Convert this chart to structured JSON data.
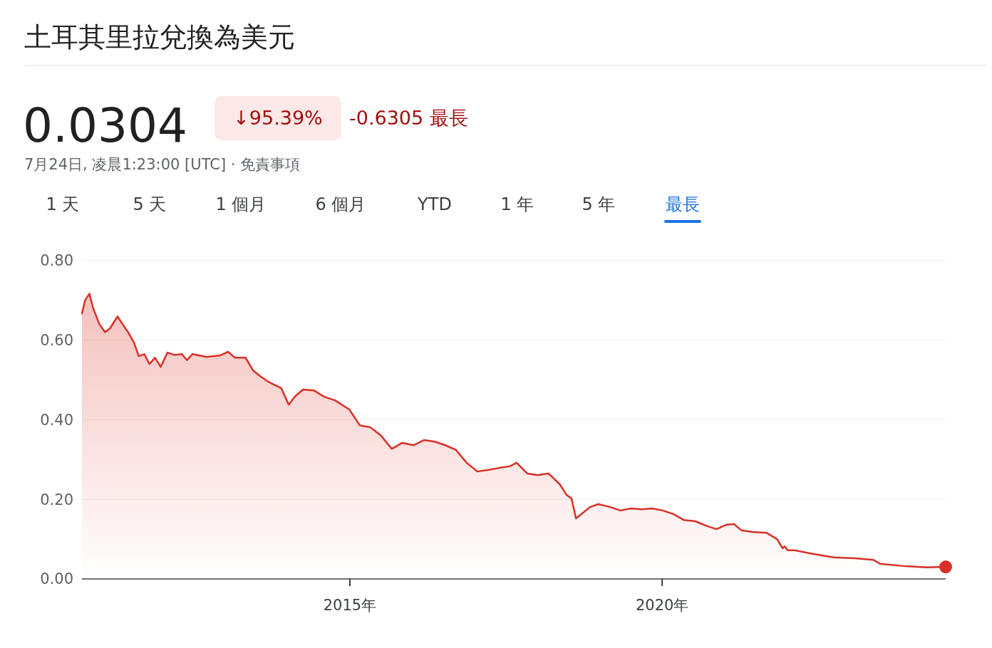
{
  "chart_data": {
    "type": "area",
    "title": "土耳其里拉兌換為美元",
    "annotations": [
      "0.0304",
      "↓95.39%",
      "-0.6305 最長",
      "7月24日, 凌晨1:23:00 [UTC] · 免責事項",
      "1 天",
      "5 天",
      "1 個月",
      "6 個月",
      "YTD",
      "1 年",
      "5 年",
      "最長"
    ],
    "series": [
      {
        "color": "#d93025",
        "x": [
          2010.71,
          2010.76,
          2010.83,
          2010.89,
          2010.99,
          2011.08,
          2011.16,
          2011.28,
          2011.36,
          2011.45,
          2011.54,
          2011.62,
          2011.71,
          2011.79,
          2011.88,
          2011.97,
          2012.08,
          2012.19,
          2012.31,
          2012.39,
          2012.48,
          2012.71,
          2012.93,
          2013.05,
          2013.16,
          2013.33,
          2013.45,
          2013.56,
          2013.68,
          2013.79,
          2013.9,
          2014.02,
          2014.13,
          2014.25,
          2014.42,
          2014.59,
          2014.76,
          2014.99,
          2015.16,
          2015.33,
          2015.5,
          2015.67,
          2015.84,
          2016.02,
          2016.19,
          2016.36,
          2016.53,
          2016.7,
          2016.87,
          2017.04,
          2017.21,
          2017.39,
          2017.56,
          2017.67,
          2017.84,
          2018.01,
          2018.18,
          2018.36,
          2018.47,
          2018.55,
          2018.62,
          2018.73,
          2018.85,
          2018.98,
          2019.16,
          2019.33,
          2019.5,
          2019.67,
          2019.84,
          2020.01,
          2020.18,
          2020.35,
          2020.53,
          2020.7,
          2020.87,
          2021.02,
          2021.15,
          2021.27,
          2021.44,
          2021.67,
          2021.84,
          2021.93,
          2021.96,
          2022.01,
          2022.12,
          2022.41,
          2022.75,
          2023.09,
          2023.38,
          2023.49,
          2023.89,
          2024.24,
          2024.54
        ],
        "values": [
          0.667,
          0.7,
          0.717,
          0.68,
          0.64,
          0.62,
          0.63,
          0.66,
          0.64,
          0.62,
          0.595,
          0.56,
          0.565,
          0.54,
          0.556,
          0.533,
          0.569,
          0.563,
          0.565,
          0.55,
          0.565,
          0.558,
          0.562,
          0.571,
          0.556,
          0.556,
          0.524,
          0.51,
          0.497,
          0.488,
          0.48,
          0.438,
          0.46,
          0.476,
          0.474,
          0.458,
          0.449,
          0.426,
          0.386,
          0.381,
          0.36,
          0.327,
          0.342,
          0.336,
          0.349,
          0.345,
          0.336,
          0.324,
          0.292,
          0.27,
          0.274,
          0.279,
          0.283,
          0.292,
          0.265,
          0.261,
          0.265,
          0.238,
          0.211,
          0.202,
          0.152,
          0.166,
          0.181,
          0.188,
          0.181,
          0.172,
          0.177,
          0.175,
          0.177,
          0.172,
          0.163,
          0.148,
          0.145,
          0.134,
          0.125,
          0.136,
          0.138,
          0.122,
          0.118,
          0.116,
          0.1,
          0.077,
          0.082,
          0.072,
          0.072,
          0.063,
          0.054,
          0.052,
          0.048,
          0.038,
          0.032,
          0.029,
          0.0304
        ]
      },
      {
        "type": "scatter",
        "color": "#d93025",
        "x": [
          2024.54
        ],
        "values": [
          0.0304
        ]
      }
    ],
    "xlim": [
      2010.71,
      2024.54
    ],
    "xticks": [
      {
        "value": 2015,
        "label": "2015年"
      },
      {
        "value": 2020,
        "label": "2020年"
      }
    ],
    "ylim": [
      0,
      0.8
    ],
    "yticks": [
      {
        "value": 0,
        "label": "0.00"
      },
      {
        "value": 0.2,
        "label": "0.20"
      },
      {
        "value": 0.4,
        "label": "0.40"
      },
      {
        "value": 0.6,
        "label": "0.60"
      },
      {
        "value": 0.8,
        "label": "0.80"
      }
    ],
    "grid": "y"
  }
}
